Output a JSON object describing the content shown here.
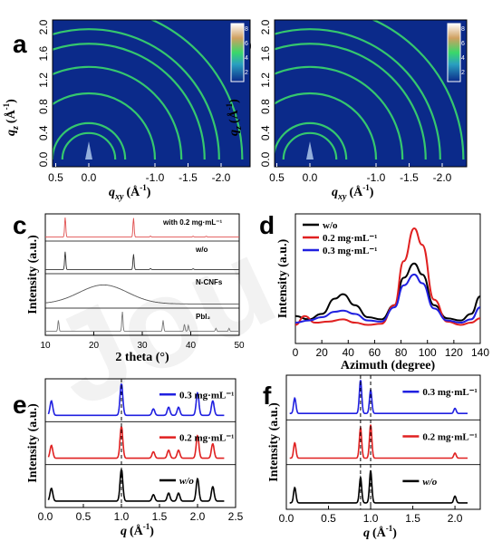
{
  "panel_labels": {
    "a": "a",
    "b": "b",
    "c": "c",
    "d": "d",
    "e": "e",
    "f": "f"
  },
  "watermark": "Jou",
  "gixd": {
    "panels": [
      "a",
      "b"
    ],
    "x_ticks": [
      "0.5",
      "0.0",
      "-1.0",
      "-1.5",
      "-2.0"
    ],
    "y_ticks": [
      "0.0",
      "0.4",
      "0.8",
      "1.2",
      "1.6",
      "2.0"
    ],
    "xlabel": "q",
    "xlabel_sub": "xy",
    "xlabel_unit": "(Å",
    "xlabel_exp": "-1",
    "xlabel_close": ")",
    "ylabel": "q",
    "ylabel_sub": "z",
    "ylabel_unit": "(Å",
    "ylabel_exp": "-1",
    "ylabel_close": ")",
    "colorbar_a": [
      "8",
      "6",
      "4",
      "2"
    ],
    "colorbar_b": [
      "8",
      "6",
      "4",
      "2"
    ],
    "ring_color": "#3ad86a",
    "background": "#0b2a8a"
  },
  "chart_data": [
    {
      "panel": "c",
      "type": "line",
      "xlabel": "2 theta (°)",
      "ylabel": "Intensity (a.u.)",
      "xlim": [
        10,
        50
      ],
      "x_ticks": [
        "10",
        "20",
        "30",
        "40",
        "50"
      ],
      "series": [
        {
          "name": "with 0.2 mg·mL⁻¹",
          "color": "#e05050",
          "peaks": [
            [
              14.1,
              1.0
            ],
            [
              28.2,
              0.95
            ],
            [
              31.7,
              0.05
            ],
            [
              40.5,
              0.04
            ],
            [
              43.2,
              0.04
            ]
          ]
        },
        {
          "name": "w/o",
          "color": "#333333",
          "peaks": [
            [
              14.1,
              0.7
            ],
            [
              28.2,
              0.6
            ],
            [
              31.7,
              0.04
            ],
            [
              40.5,
              0.03
            ]
          ]
        },
        {
          "name": "N-CNFs",
          "color": "#555555",
          "hump": [
            22,
            0.7,
            5
          ]
        },
        {
          "name": "PbI₂",
          "color": "#777777",
          "peaks": [
            [
              12.7,
              0.55
            ],
            [
              25.9,
              1.0
            ],
            [
              34.3,
              0.55
            ],
            [
              38.7,
              0.35
            ],
            [
              39.5,
              0.3
            ],
            [
              45.2,
              0.15
            ],
            [
              47.9,
              0.15
            ]
          ]
        }
      ]
    },
    {
      "panel": "d",
      "type": "line",
      "xlabel": "Azimuth (degree)",
      "ylabel": "Intensity (a.u.)",
      "xlim": [
        0,
        140
      ],
      "x_ticks": [
        "0",
        "20",
        "40",
        "60",
        "80",
        "100",
        "120",
        "140"
      ],
      "series": [
        {
          "name": "w/o",
          "color": "#000000",
          "points": [
            [
              0,
              0.2
            ],
            [
              10,
              0.17
            ],
            [
              20,
              0.22
            ],
            [
              30,
              0.36
            ],
            [
              36,
              0.4
            ],
            [
              45,
              0.3
            ],
            [
              55,
              0.19
            ],
            [
              65,
              0.17
            ],
            [
              75,
              0.3
            ],
            [
              82,
              0.55
            ],
            [
              90,
              0.68
            ],
            [
              96,
              0.58
            ],
            [
              105,
              0.3
            ],
            [
              115,
              0.18
            ],
            [
              125,
              0.16
            ],
            [
              133,
              0.22
            ],
            [
              140,
              0.38
            ]
          ]
        },
        {
          "name": "0.2 mg·mL⁻¹",
          "color": "#e02020",
          "points": [
            [
              0,
              0.12
            ],
            [
              7,
              0.2
            ],
            [
              15,
              0.14
            ],
            [
              25,
              0.15
            ],
            [
              36,
              0.17
            ],
            [
              45,
              0.14
            ],
            [
              55,
              0.12
            ],
            [
              65,
              0.13
            ],
            [
              75,
              0.3
            ],
            [
              82,
              0.7
            ],
            [
              90,
              1.0
            ],
            [
              96,
              0.85
            ],
            [
              105,
              0.35
            ],
            [
              115,
              0.15
            ],
            [
              125,
              0.12
            ],
            [
              133,
              0.14
            ],
            [
              140,
              0.18
            ]
          ]
        },
        {
          "name": "0.3 mg·mL⁻¹",
          "color": "#2020e0",
          "points": [
            [
              0,
              0.14
            ],
            [
              10,
              0.16
            ],
            [
              20,
              0.19
            ],
            [
              30,
              0.24
            ],
            [
              36,
              0.25
            ],
            [
              45,
              0.22
            ],
            [
              55,
              0.16
            ],
            [
              65,
              0.15
            ],
            [
              75,
              0.28
            ],
            [
              82,
              0.48
            ],
            [
              90,
              0.58
            ],
            [
              96,
              0.5
            ],
            [
              105,
              0.27
            ],
            [
              115,
              0.16
            ],
            [
              125,
              0.14
            ],
            [
              133,
              0.17
            ],
            [
              140,
              0.28
            ]
          ]
        }
      ]
    },
    {
      "panel": "e",
      "type": "line",
      "xlabel": "q",
      "xlabel_unit": "(Å",
      "xlabel_exp": "-1",
      "xlabel_close": ")",
      "ylabel": "Intensity (a.u.)",
      "xlim": [
        0,
        2.5
      ],
      "x_ticks": [
        "0.0",
        "0.5",
        "1.0",
        "1.5",
        "2.0",
        "2.5"
      ],
      "dashed_x": [
        1.0
      ],
      "series": [
        {
          "name": "0.3 mg·mL⁻¹",
          "color": "#2020e0",
          "peaks": [
            [
              0.08,
              0.45
            ],
            [
              1.0,
              1.0
            ],
            [
              1.42,
              0.2
            ],
            [
              1.62,
              0.25
            ],
            [
              1.75,
              0.25
            ],
            [
              2.0,
              0.7
            ],
            [
              2.2,
              0.45
            ]
          ]
        },
        {
          "name": "0.2 mg·mL⁻¹",
          "color": "#e02020",
          "peaks": [
            [
              0.08,
              0.4
            ],
            [
              1.0,
              1.0
            ],
            [
              1.42,
              0.2
            ],
            [
              1.62,
              0.25
            ],
            [
              1.75,
              0.25
            ],
            [
              2.0,
              0.7
            ],
            [
              2.2,
              0.45
            ]
          ]
        },
        {
          "name": "w/o",
          "color": "#000000",
          "peaks": [
            [
              0.08,
              0.4
            ],
            [
              1.0,
              1.0
            ],
            [
              1.42,
              0.2
            ],
            [
              1.62,
              0.25
            ],
            [
              1.75,
              0.25
            ],
            [
              2.0,
              0.7
            ],
            [
              2.2,
              0.45
            ]
          ]
        }
      ]
    },
    {
      "panel": "f",
      "type": "line",
      "xlabel": "q",
      "xlabel_unit": "(Å",
      "xlabel_exp": "-1",
      "xlabel_close": ")",
      "ylabel": "Intensity (a.u.)",
      "xlim": [
        0,
        2.3
      ],
      "x_ticks": [
        "0.0",
        "0.5",
        "1.0",
        "1.5",
        "2.0"
      ],
      "dashed_x": [
        0.88,
        1.0
      ],
      "series": [
        {
          "name": "0.3 mg·mL⁻¹",
          "color": "#2020e0",
          "peaks": [
            [
              0.1,
              0.45
            ],
            [
              0.88,
              1.0
            ],
            [
              1.0,
              0.7
            ],
            [
              2.0,
              0.15
            ]
          ]
        },
        {
          "name": "0.2 mg·mL⁻¹",
          "color": "#e02020",
          "peaks": [
            [
              0.1,
              0.45
            ],
            [
              0.88,
              0.9
            ],
            [
              1.0,
              1.0
            ],
            [
              2.0,
              0.15
            ]
          ]
        },
        {
          "name": "w/o",
          "color": "#000000",
          "peaks": [
            [
              0.1,
              0.45
            ],
            [
              0.88,
              0.75
            ],
            [
              1.0,
              0.95
            ],
            [
              2.0,
              0.2
            ]
          ]
        }
      ]
    }
  ]
}
